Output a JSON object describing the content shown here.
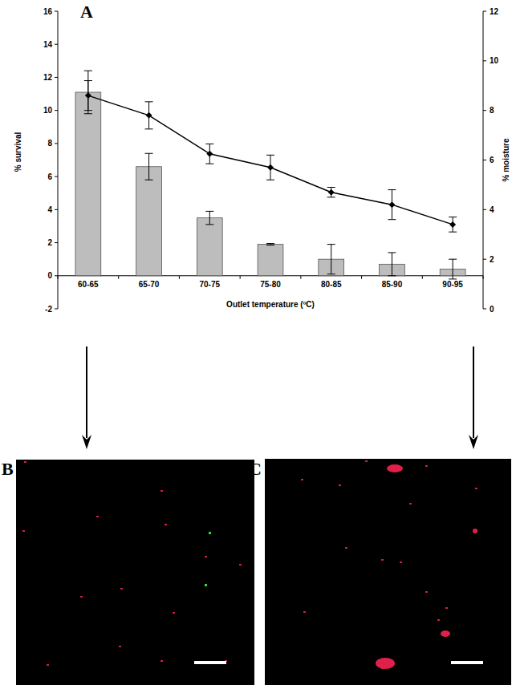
{
  "chart_data": {
    "type": "bar",
    "categories": [
      "60-65",
      "65-70",
      "70-75",
      "75-80",
      "80-85",
      "85-90",
      "90-95"
    ],
    "xlabel": "Outlet temperature (ºC)",
    "ylabel": "% survival",
    "y2label": "% moisture",
    "ylim": [
      -2,
      16
    ],
    "yticks": [
      -2,
      0,
      2,
      4,
      6,
      8,
      10,
      12,
      14,
      16
    ],
    "y2lim": [
      0,
      12
    ],
    "y2ticks": [
      0,
      2,
      4,
      6,
      8,
      10,
      12
    ],
    "series": [
      {
        "type": "bar",
        "color": "#bdbdbd",
        "values": [
          11.1,
          6.6,
          3.5,
          1.9,
          1.0,
          0.7,
          0.4
        ],
        "errors": [
          1.3,
          0.8,
          0.4,
          0.05,
          0.9,
          0.7,
          0.6
        ]
      },
      {
        "type": "line",
        "color": "#000000",
        "marker": "diamond",
        "axis": "y2",
        "values": [
          8.6,
          7.8,
          6.25,
          5.7,
          4.7,
          4.2,
          3.4
        ],
        "errors": [
          0.6,
          0.55,
          0.4,
          0.5,
          0.2,
          0.6,
          0.3
        ]
      }
    ]
  },
  "panel_labels": [
    "A",
    "B",
    "C"
  ]
}
